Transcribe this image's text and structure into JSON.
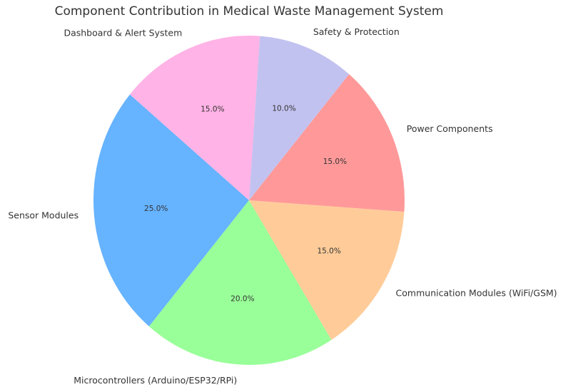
{
  "chart_data": {
    "type": "pie",
    "title": "Component Contribution in Medical Waste Management System",
    "categories": [
      "Sensor Modules",
      "Microcontrollers (Arduino/ESP32/RPi)",
      "Communication Modules (WiFi/GSM)",
      "Power Components",
      "Safety & Protection",
      "Dashboard & Alert System"
    ],
    "values": [
      25,
      20,
      15,
      15,
      10,
      15
    ],
    "value_labels": [
      "25.0%",
      "20.0%",
      "15.0%",
      "15.0%",
      "10.0%",
      "15.0%"
    ],
    "colors": [
      "#66b3ff",
      "#99ff99",
      "#ffcc99",
      "#ff9999",
      "#c2c2f0",
      "#ffb3e6"
    ],
    "start_angle": 140
  }
}
